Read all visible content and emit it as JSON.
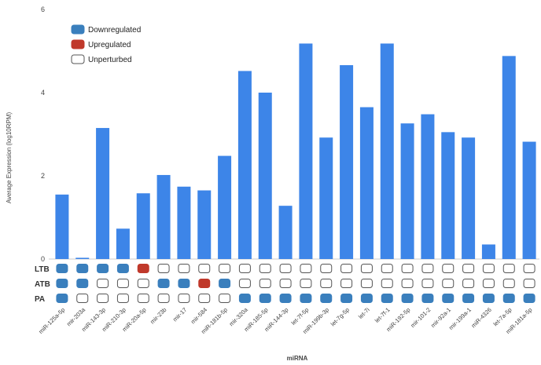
{
  "chart_data": {
    "type": "bar",
    "title": "",
    "xlabel": "miRNA",
    "ylabel": "Average Expression (log10RPM)",
    "ylim": [
      0,
      6
    ],
    "yticks": [
      "0",
      "2",
      "4",
      "6"
    ],
    "grid": false,
    "legend_position": "top-left",
    "categories": [
      "miR-125a-5p",
      "mir-203a",
      "miR-143-3p",
      "miR-210-3p",
      "miR-20a-5p",
      "mir-23b",
      "mir-17",
      "mir-584",
      "miR-181b-5p",
      "mir-320a",
      "miR-185-5p",
      "miR-144-3p",
      "let-7f-5p",
      "miR-199b-3p",
      "let-7g-5p",
      "let-7i",
      "let-7f-1",
      "miR-192-5p",
      "mir-101-2",
      "mir-92a-1",
      "mir-199a-1",
      "miR-4326",
      "let-7a-5p",
      "miR-181a-5p"
    ],
    "series": [
      {
        "values": [
          1.55,
          0.03,
          3.15,
          0.73,
          1.58,
          2.02,
          1.74,
          1.65,
          2.48,
          4.52,
          4.0,
          1.28,
          5.18,
          2.92,
          4.66,
          3.65,
          5.18,
          3.26,
          3.48,
          3.05,
          2.92,
          0.35,
          4.88,
          2.82
        ]
      }
    ],
    "legend": [
      {
        "label": "Downregulated",
        "status": "down"
      },
      {
        "label": "Upregulated",
        "status": "up"
      },
      {
        "label": "Unperturbed",
        "status": "none"
      }
    ],
    "status_rows": [
      {
        "label": "LTB",
        "values": [
          "down",
          "down",
          "down",
          "down",
          "up",
          "none",
          "none",
          "none",
          "none",
          "none",
          "none",
          "none",
          "none",
          "none",
          "none",
          "none",
          "none",
          "none",
          "none",
          "none",
          "none",
          "none",
          "none",
          "none"
        ]
      },
      {
        "label": "ATB",
        "values": [
          "down",
          "down",
          "none",
          "none",
          "none",
          "down",
          "down",
          "up",
          "down",
          "none",
          "none",
          "none",
          "none",
          "none",
          "none",
          "none",
          "none",
          "none",
          "none",
          "none",
          "none",
          "none",
          "none",
          "none"
        ]
      },
      {
        "label": "PA",
        "values": [
          "down",
          "none",
          "none",
          "none",
          "none",
          "none",
          "none",
          "none",
          "none",
          "down",
          "down",
          "down",
          "down",
          "down",
          "down",
          "down",
          "down",
          "down",
          "down",
          "down",
          "down",
          "down",
          "down",
          "down"
        ]
      }
    ],
    "colors": {
      "bar": "#3d85e8",
      "down": "#3a7fbd",
      "up": "#c0392b",
      "none": "#ffffff",
      "outline": "#555555"
    }
  }
}
